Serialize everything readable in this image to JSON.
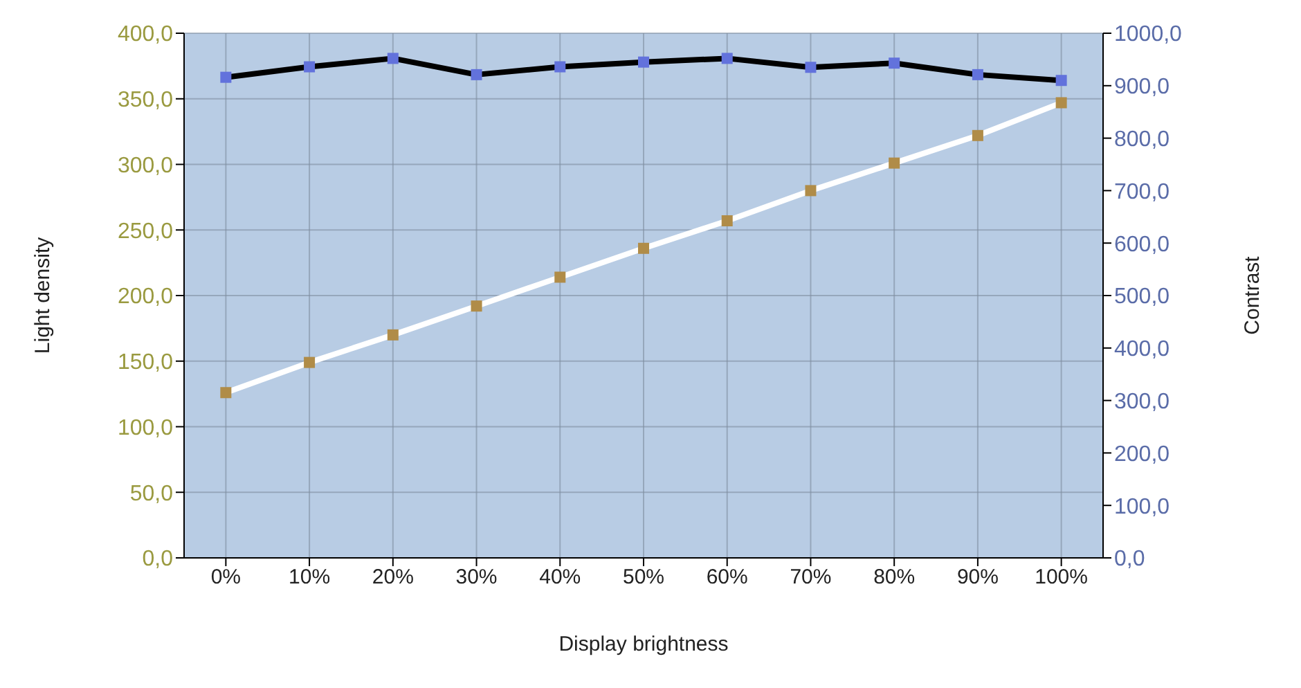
{
  "chart_data": {
    "type": "line",
    "xlabel": "Display brightness",
    "ylabel": "Light density",
    "y2label": "Contrast",
    "categories": [
      "0%",
      "10%",
      "20%",
      "30%",
      "40%",
      "50%",
      "60%",
      "70%",
      "80%",
      "90%",
      "100%"
    ],
    "series": [
      {
        "color": "#ffffff",
        "axis": "y",
        "values": [
          126,
          149,
          170,
          192,
          214,
          236,
          257,
          280,
          301,
          322,
          347
        ]
      },
      {
        "color": "#000000",
        "axis": "y2",
        "values": [
          916,
          936,
          952,
          921,
          936,
          945,
          952,
          935,
          943,
          921,
          910
        ]
      }
    ],
    "ylim": [
      0,
      400
    ],
    "yticks": [
      {
        "value": 0,
        "label": "0,0"
      },
      {
        "value": 50,
        "label": "50,0"
      },
      {
        "value": 100,
        "label": "100,0"
      },
      {
        "value": 150,
        "label": "150,0"
      },
      {
        "value": 200,
        "label": "200,0"
      },
      {
        "value": 250,
        "label": "250,0"
      },
      {
        "value": 300,
        "label": "300,0"
      },
      {
        "value": 350,
        "label": "350,0"
      },
      {
        "value": 400,
        "label": "400,0"
      }
    ],
    "y2lim": [
      0,
      1000
    ],
    "y2ticks": [
      {
        "value": 0,
        "label": "0,0"
      },
      {
        "value": 100,
        "label": "100,0"
      },
      {
        "value": 200,
        "label": "200,0"
      },
      {
        "value": 300,
        "label": "300,0"
      },
      {
        "value": 400,
        "label": "400,0"
      },
      {
        "value": 500,
        "label": "500,0"
      },
      {
        "value": 600,
        "label": "600,0"
      },
      {
        "value": 700,
        "label": "700,0"
      },
      {
        "value": 800,
        "label": "800,0"
      },
      {
        "value": 900,
        "label": "900,0"
      },
      {
        "value": 1000,
        "label": "1000,0"
      }
    ],
    "grid": true,
    "legend": false,
    "marker": "square",
    "line_style": "solid"
  }
}
